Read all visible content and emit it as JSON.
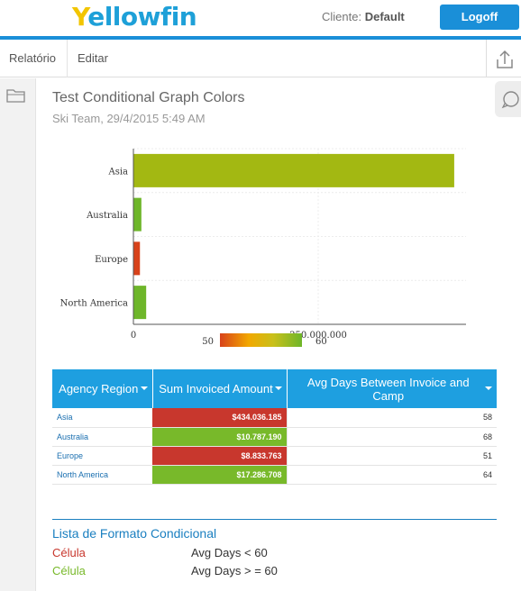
{
  "header": {
    "logo_y": "Y",
    "logo_rest": "ellowfin",
    "client_label": "Cliente:",
    "client_value": "Default",
    "logoff_label": "Logoff"
  },
  "menu": {
    "items": [
      "Relatório",
      "Editar"
    ]
  },
  "report": {
    "title": "Test Conditional Graph Colors",
    "subtitle": "Ski Team, 29/4/2015 5:49 AM"
  },
  "colors": {
    "accent": "#1a8fd8",
    "bar_high": "#a3b812",
    "bar_mid": "#6eb62a",
    "bar_low": "#d8421a",
    "cell_red": "#c8372d",
    "cell_green": "#78b92a"
  },
  "chart_data": {
    "type": "bar",
    "orientation": "horizontal",
    "categories": [
      "Asia",
      "Australia",
      "Europe",
      "North America"
    ],
    "values": [
      434036185,
      10787190,
      8833763,
      17286708
    ],
    "xlim": [
      0,
      450000000
    ],
    "xticks": [
      0,
      250000000
    ],
    "xtick_labels": [
      "0",
      "250.000.000"
    ],
    "grid": true,
    "legend": {
      "type": "gradient",
      "min_label": "50",
      "max_label": "60",
      "position": "bottom"
    }
  },
  "table": {
    "headers": [
      "Agency Region",
      "Sum Invoiced Amount",
      "Avg Days Between Invoice and Camp"
    ],
    "rows": [
      {
        "region": "Asia",
        "amount": "$434.036.185",
        "days": "58",
        "status": "red"
      },
      {
        "region": "Australia",
        "amount": "$10.787.190",
        "days": "68",
        "status": "green"
      },
      {
        "region": "Europe",
        "amount": "$8.833.763",
        "days": "51",
        "status": "red"
      },
      {
        "region": "North America",
        "amount": "$17.286.708",
        "days": "64",
        "status": "green"
      }
    ]
  },
  "conditional": {
    "title": "Lista de Formato Condicional",
    "rules": [
      {
        "cell": "Célula",
        "rule": "Avg Days < 60",
        "color": "#c8372d"
      },
      {
        "cell": "Célula",
        "rule": "Avg Days > = 60",
        "color": "#78b92a"
      }
    ]
  }
}
